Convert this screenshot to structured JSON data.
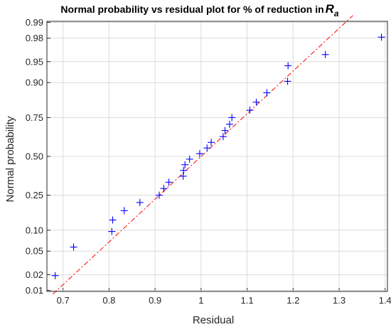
{
  "chart_data": {
    "type": "scatter",
    "title": "Normal probability vs residual plot for % of reduction in",
    "title_symbol": "R",
    "title_subscript": "a",
    "xlabel": "Residual",
    "ylabel": "Normal probability",
    "xlim": [
      0.665,
      1.405
    ],
    "x_ticks": [
      0.7,
      0.8,
      0.9,
      1,
      1.1,
      1.2,
      1.3,
      1.4
    ],
    "x_tick_labels": [
      "0.7",
      "0.8",
      "0.9",
      "1",
      "1.1",
      "1.2",
      "1.3",
      "1.4"
    ],
    "y_scale": "normal-probability",
    "ylim": [
      0.0095,
      0.9905
    ],
    "y_ticks": [
      0.01,
      0.02,
      0.05,
      0.1,
      0.25,
      0.5,
      0.75,
      0.9,
      0.95,
      0.98,
      0.99
    ],
    "y_tick_labels": [
      "0.01",
      "0.02",
      "0.05",
      "0.10",
      "0.25",
      "0.50",
      "0.75",
      "0.90",
      "0.95",
      "0.98",
      "0.99"
    ],
    "grid": true,
    "marker_color": "#0000ff",
    "reference_line_color": "#ff0000",
    "reference_line": [
      [
        0.678,
        0.0084
      ],
      [
        1.33,
        0.9928
      ]
    ],
    "points": [
      {
        "x": 0.683,
        "p": 0.0192
      },
      {
        "x": 0.723,
        "p": 0.0577
      },
      {
        "x": 0.806,
        "p": 0.0962
      },
      {
        "x": 0.808,
        "p": 0.1346
      },
      {
        "x": 0.833,
        "p": 0.1731
      },
      {
        "x": 0.867,
        "p": 0.2115
      },
      {
        "x": 0.909,
        "p": 0.25
      },
      {
        "x": 0.919,
        "p": 0.2885
      },
      {
        "x": 0.93,
        "p": 0.3269
      },
      {
        "x": 0.961,
        "p": 0.3654
      },
      {
        "x": 0.962,
        "p": 0.4038
      },
      {
        "x": 0.965,
        "p": 0.4423
      },
      {
        "x": 0.975,
        "p": 0.4808
      },
      {
        "x": 0.997,
        "p": 0.5192
      },
      {
        "x": 1.013,
        "p": 0.5577
      },
      {
        "x": 1.022,
        "p": 0.5962
      },
      {
        "x": 1.048,
        "p": 0.6346
      },
      {
        "x": 1.052,
        "p": 0.6731
      },
      {
        "x": 1.062,
        "p": 0.7115
      },
      {
        "x": 1.067,
        "p": 0.75
      },
      {
        "x": 1.106,
        "p": 0.7885
      },
      {
        "x": 1.12,
        "p": 0.8269
      },
      {
        "x": 1.143,
        "p": 0.8654
      },
      {
        "x": 1.188,
        "p": 0.9038
      },
      {
        "x": 1.189,
        "p": 0.9423
      },
      {
        "x": 1.27,
        "p": 0.9615
      },
      {
        "x": 1.392,
        "p": 0.9808
      }
    ]
  }
}
